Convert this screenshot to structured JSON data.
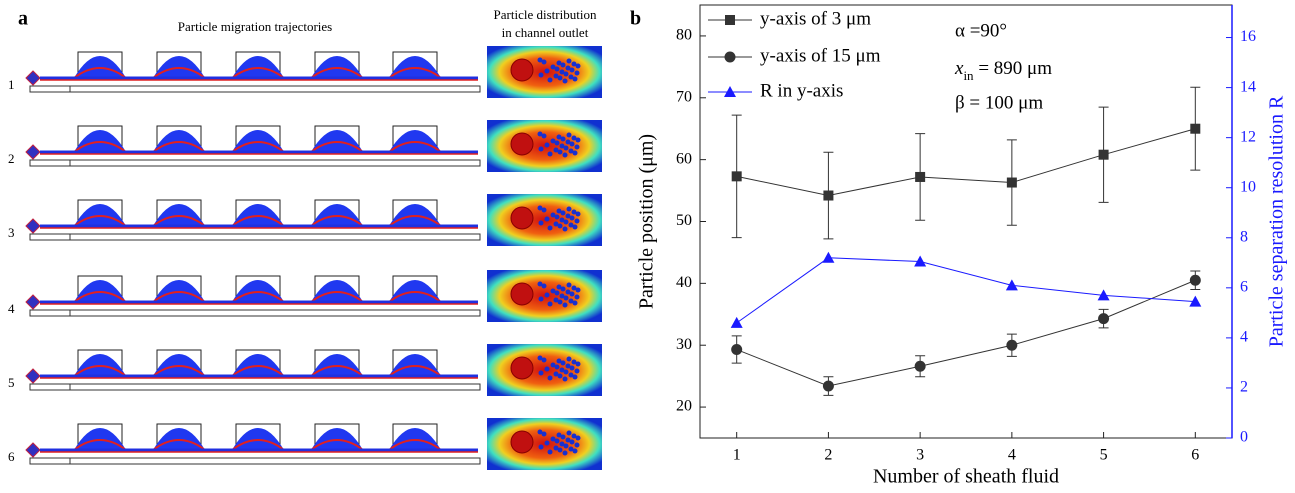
{
  "panel_a": {
    "label": "a",
    "title": "Particle migration trajectories",
    "outlet_title": [
      "Particle distribution",
      "in channel outlet"
    ],
    "rows": [
      "1",
      "2",
      "3",
      "4",
      "5",
      "6"
    ]
  },
  "chart_data": {
    "type": "line",
    "panel_label": "b",
    "x_label": "Number of sheath fluid",
    "y_label": "Particle position (μm)",
    "y2_label": "Particle separation resolution R",
    "annotations": [
      "α =90°",
      [
        "x",
        "in",
        " = 890 μm"
      ],
      "β = 100 μm"
    ],
    "x": [
      1,
      2,
      3,
      4,
      5,
      6
    ],
    "xlim": [
      0.6,
      6.4
    ],
    "xticks": [
      1,
      2,
      3,
      4,
      5,
      6
    ],
    "ylim": [
      15,
      85
    ],
    "yticks": [
      20,
      30,
      40,
      50,
      60,
      70,
      80
    ],
    "y2lim": [
      0,
      17.3
    ],
    "y2ticks": [
      0,
      2,
      4,
      6,
      8,
      10,
      12,
      14,
      16
    ],
    "legend": "top-left",
    "series": [
      {
        "name": "y-axis of 3 μm",
        "color": "#333333",
        "marker": "square",
        "values": [
          57.3,
          54.2,
          57.2,
          56.3,
          60.8,
          65.0
        ],
        "errors": [
          9.9,
          7.0,
          7.0,
          6.9,
          7.7,
          6.7
        ]
      },
      {
        "name": "y-axis of 15 μm",
        "color": "#333333",
        "marker": "circle",
        "values": [
          29.3,
          23.4,
          26.6,
          30.0,
          34.3,
          40.5
        ],
        "errors": [
          2.2,
          1.5,
          1.7,
          1.8,
          1.5,
          1.5
        ]
      },
      {
        "name": "R in y-axis",
        "color": "#1a1aff",
        "marker": "triangle",
        "axis": "y2",
        "values": [
          4.6,
          7.2,
          7.05,
          6.1,
          5.7,
          5.45
        ]
      }
    ]
  }
}
